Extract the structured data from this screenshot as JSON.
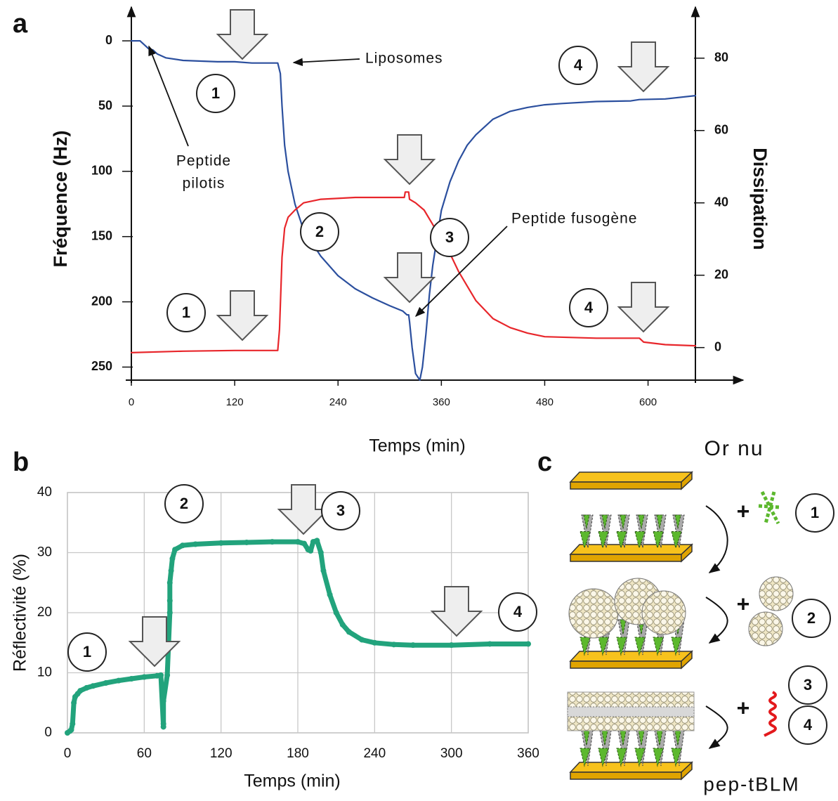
{
  "chart_data": [
    {
      "type": "line",
      "panel_label": "a",
      "x_label": "Temps (min)",
      "y_label": "Fréquence (Hz)",
      "y2_label": "Dissipation",
      "xlim": [
        0,
        655
      ],
      "xticks": [
        0,
        120,
        240,
        360,
        480,
        600
      ],
      "ylim": [
        -20,
        260
      ],
      "y_inverted": true,
      "yticks": [
        0,
        50,
        100,
        150,
        200,
        250
      ],
      "y2lim": [
        -9,
        92
      ],
      "y2ticks": [
        0,
        20,
        40,
        60,
        80
      ],
      "series": [
        {
          "color": "#2b4f9e",
          "axis": "y",
          "x": [
            0,
            10,
            15,
            20,
            25,
            30,
            40,
            60,
            100,
            120,
            140,
            170,
            173,
            175,
            178,
            182,
            190,
            200,
            220,
            240,
            260,
            280,
            300,
            315,
            320,
            322,
            323,
            326,
            330,
            335,
            338,
            342,
            346,
            350,
            360,
            370,
            380,
            390,
            400,
            420,
            440,
            460,
            480,
            500,
            540,
            580,
            590,
            620,
            655
          ],
          "values": [
            0,
            0,
            3,
            6,
            7,
            10,
            13,
            15,
            16,
            16,
            17,
            17,
            25,
            50,
            80,
            100,
            125,
            145,
            165,
            180,
            190,
            197,
            203,
            207,
            210,
            210,
            215,
            235,
            255,
            260,
            250,
            225,
            195,
            172,
            130,
            108,
            92,
            80,
            72,
            60,
            54,
            51,
            49,
            48,
            46.5,
            46,
            45,
            44.5,
            42
          ]
        },
        {
          "color": "#e8262b",
          "axis": "y2",
          "x": [
            0,
            60,
            120,
            170,
            172,
            175,
            178,
            182,
            190,
            200,
            220,
            260,
            300,
            317,
            318,
            322,
            323,
            330,
            340,
            350,
            360,
            370,
            380,
            390,
            400,
            420,
            440,
            460,
            480,
            540,
            590,
            595,
            620,
            655
          ],
          "values": [
            -1.4,
            -1,
            -0.8,
            -0.8,
            5,
            25,
            33,
            36,
            38,
            40,
            41,
            41.5,
            41.5,
            41.5,
            43,
            43,
            41,
            40,
            38,
            34,
            30,
            26,
            21,
            17,
            13,
            8,
            5.5,
            4,
            3,
            2.6,
            2.6,
            1.5,
            0.8,
            0.5
          ]
        }
      ],
      "annotations": [
        "Liposomes",
        "Peptide",
        "pilotis",
        "Peptide fusogène"
      ],
      "step_labels": [
        "1",
        "1",
        "2",
        "3",
        "4",
        "4"
      ]
    },
    {
      "type": "line",
      "panel_label": "b",
      "x_label": "Temps (min)",
      "y_label": "Réflectivité (%)",
      "markers": true,
      "grid": true,
      "xlim": [
        0,
        360
      ],
      "xticks": [
        0,
        60,
        120,
        180,
        240,
        300,
        360
      ],
      "ylim": [
        0,
        40
      ],
      "yticks": [
        0,
        10,
        20,
        30,
        40
      ],
      "series": [
        {
          "color": "#22a37c",
          "x": [
            0,
            2,
            3,
            4,
            5,
            6,
            8,
            10,
            15,
            20,
            30,
            40,
            50,
            60,
            70,
            73,
            75,
            75,
            75,
            78,
            80,
            80,
            80,
            81,
            82,
            84,
            90,
            100,
            120,
            140,
            160,
            180,
            185,
            188,
            190,
            192,
            195,
            198,
            200,
            205,
            210,
            215,
            220,
            230,
            240,
            255,
            270,
            300,
            330,
            360
          ],
          "values": [
            0,
            0.3,
            0.5,
            1.5,
            5,
            6,
            6.5,
            7,
            7.5,
            7.8,
            8.3,
            8.7,
            9,
            9.3,
            9.5,
            9.6,
            1,
            1.5,
            5.3,
            9.6,
            20,
            22,
            25,
            27,
            29,
            30.5,
            31.2,
            31.4,
            31.6,
            31.7,
            31.8,
            31.8,
            31.5,
            30.5,
            30.3,
            31.8,
            32,
            30,
            27,
            23,
            20,
            18,
            16.8,
            15.5,
            15,
            14.7,
            14.6,
            14.6,
            14.8,
            14.8
          ]
        }
      ],
      "step_labels": [
        "1",
        "2",
        "3",
        "4"
      ]
    }
  ],
  "diagram": {
    "panel_label": "c",
    "top_label": "Or nu",
    "bottom_label": "pep-tBLM",
    "steps": [
      {
        "sign": "+",
        "labels": [
          "1"
        ]
      },
      {
        "sign": "+",
        "labels": [
          "2"
        ]
      },
      {
        "sign": "+",
        "labels": [
          "3",
          "4"
        ]
      }
    ]
  }
}
